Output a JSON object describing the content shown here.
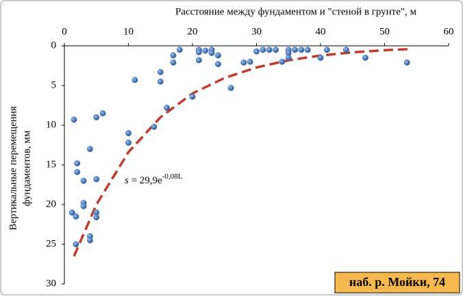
{
  "chart_data": {
    "type": "scatter",
    "x_label": "Расстояние между фундаментом и \"стеной в грунте\", м",
    "y_label": [
      "Вертикальные перемещения",
      "фундаментов, мм"
    ],
    "xlim": [
      0,
      60
    ],
    "xticks": [
      0,
      10,
      20,
      30,
      40,
      50,
      60
    ],
    "ylim": [
      0,
      30
    ],
    "yticks": [
      0,
      5,
      10,
      15,
      20,
      25,
      30
    ],
    "y_inverted": true,
    "points": {
      "color": "#3b6fb6",
      "x": [
        1.5,
        1.2,
        1.8,
        2,
        2,
        1.8,
        3,
        3,
        3,
        4,
        4,
        4,
        5,
        5,
        5,
        5,
        6,
        10,
        10,
        11,
        14,
        15,
        15,
        16,
        17,
        17,
        18,
        20,
        21,
        21,
        21,
        22,
        23,
        23,
        24,
        24,
        26,
        28,
        29,
        30,
        31,
        32,
        33,
        34,
        35,
        35,
        35,
        36,
        37,
        38,
        40,
        41,
        44,
        47,
        53.5
      ],
      "values": [
        9.3,
        21,
        21.5,
        14.8,
        15.9,
        25,
        17,
        19.8,
        20.2,
        13,
        24,
        24.5,
        9,
        16.8,
        21,
        21.6,
        8.5,
        11,
        12.2,
        4.3,
        10.2,
        3.3,
        4.5,
        7.8,
        1.2,
        2.1,
        0.5,
        6.4,
        0.5,
        0.8,
        1.8,
        0.6,
        0.5,
        0.9,
        1.2,
        2.3,
        5.3,
        2.1,
        2,
        0.7,
        0.5,
        0.5,
        0.5,
        2,
        0.5,
        0.9,
        1.5,
        0.5,
        0.5,
        0.5,
        1.5,
        0.5,
        0.5,
        1.5,
        2.1
      ]
    },
    "trend": {
      "color": "#c0392b",
      "x": [
        1.5,
        5,
        10,
        15,
        20,
        25,
        30,
        35,
        40,
        45,
        50,
        54
      ],
      "values": [
        26.5,
        20.0,
        13.4,
        9.0,
        6.0,
        4.05,
        2.72,
        1.82,
        1.22,
        0.82,
        0.55,
        0.4
      ]
    },
    "equation": {
      "lhs": "s",
      "mid": " = 29,9e",
      "exp": "-0,08L"
    },
    "badge": "наб. р. Мойки, 74"
  }
}
